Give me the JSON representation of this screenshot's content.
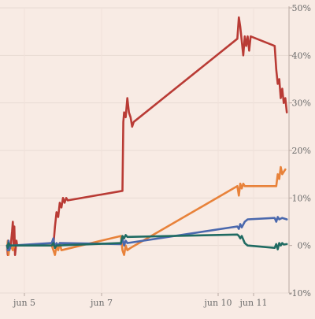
{
  "chart_data": {
    "type": "line",
    "title": "",
    "xlabel": "",
    "ylabel": "",
    "x_ticks": [
      "jun 5",
      "jun 7",
      "jun 10",
      "jun 11"
    ],
    "y_ticks": [
      "50%",
      "40%",
      "30%",
      "20%",
      "10%",
      "0%",
      "-10%"
    ],
    "ylim": [
      -10,
      50
    ],
    "y_unit": "%",
    "grid": true,
    "legend": "none",
    "series": [
      {
        "color": "#b93b35",
        "points": [
          [
            "jun 4 00:00",
            0
          ],
          [
            "jun 4 01:00",
            -2
          ],
          [
            "jun 4 02:00",
            1
          ],
          [
            "jun 4 03:00",
            -1
          ],
          [
            "jun 4 05:00",
            0
          ],
          [
            "jun 4 07:00",
            3
          ],
          [
            "jun 4 08:00",
            5
          ],
          [
            "jun 4 09:00",
            0
          ],
          [
            "jun 4 10:00",
            4
          ],
          [
            "jun 4 11:00",
            -2
          ],
          [
            "jun 4 13:00",
            1
          ],
          [
            "jun 4 14:00",
            0
          ],
          [
            "jun 5 18:00",
            0
          ],
          [
            "jun 5 19:00",
            4
          ],
          [
            "jun 5 20:00",
            7
          ],
          [
            "jun 5 21:00",
            6
          ],
          [
            "jun 5 22:00",
            9
          ],
          [
            "jun 5 23:00",
            8
          ],
          [
            "jun 6 00:00",
            10
          ],
          [
            "jun 6 01:00",
            9
          ],
          [
            "jun 6 02:00",
            10
          ],
          [
            "jun 6 03:00",
            9.5
          ],
          [
            "jun 7 13:00",
            11.5
          ],
          [
            "jun 7 13:30",
            26
          ],
          [
            "jun 7 14:00",
            28
          ],
          [
            "jun 7 15:00",
            27
          ],
          [
            "jun 7 16:00",
            31
          ],
          [
            "jun 7 17:00",
            28
          ],
          [
            "jun 7 18:00",
            27
          ],
          [
            "jun 7 19:00",
            25
          ],
          [
            "jun 7 20:00",
            26
          ],
          [
            "jun 10 13:00",
            43.5
          ],
          [
            "jun 10 14:00",
            48
          ],
          [
            "jun 10 15:00",
            46
          ],
          [
            "jun 10 16:00",
            43
          ],
          [
            "jun 10 17:00",
            40
          ],
          [
            "jun 10 18:00",
            44
          ],
          [
            "jun 10 19:00",
            42
          ],
          [
            "jun 10 20:00",
            44
          ],
          [
            "jun 10 21:00",
            41
          ],
          [
            "jun 10 22:00",
            44
          ],
          [
            "jun 11 14:00",
            42
          ],
          [
            "jun 11 15:00",
            37
          ],
          [
            "jun 11 16:00",
            34
          ],
          [
            "jun 11 17:00",
            35
          ],
          [
            "jun 11 18:00",
            31
          ],
          [
            "jun 11 19:00",
            33
          ],
          [
            "jun 11 20:00",
            30
          ],
          [
            "jun 11 21:00",
            31
          ],
          [
            "jun 11 22:00",
            28
          ]
        ]
      },
      {
        "color": "#e8823a",
        "points": [
          [
            "jun 4 00:00",
            -1
          ],
          [
            "jun 4 01:00",
            1
          ],
          [
            "jun 4 02:00",
            -2
          ],
          [
            "jun 4 03:00",
            -0.5
          ],
          [
            "jun 4 05:00",
            0
          ],
          [
            "jun 4 08:00",
            -1
          ],
          [
            "jun 4 10:00",
            0
          ],
          [
            "jun 5 17:00",
            0
          ],
          [
            "jun 5 18:00",
            -1
          ],
          [
            "jun 5 19:00",
            -2
          ],
          [
            "jun 5 20:00",
            0
          ],
          [
            "jun 5 21:00",
            -1
          ],
          [
            "jun 5 22:00",
            0.5
          ],
          [
            "jun 5 23:00",
            -1
          ],
          [
            "jun 7 12:00",
            2
          ],
          [
            "jun 7 13:00",
            -1
          ],
          [
            "jun 7 14:00",
            -2
          ],
          [
            "jun 7 15:00",
            0
          ],
          [
            "jun 7 16:00",
            -1
          ],
          [
            "jun 7 18:00",
            -0.5
          ],
          [
            "jun 10 13:00",
            12.5
          ],
          [
            "jun 10 14:00",
            10.5
          ],
          [
            "jun 10 15:00",
            13
          ],
          [
            "jun 10 16:00",
            12
          ],
          [
            "jun 10 17:00",
            13
          ],
          [
            "jun 10 18:00",
            12.5
          ],
          [
            "jun 11 15:00",
            12.5
          ],
          [
            "jun 11 16:00",
            15
          ],
          [
            "jun 11 17:00",
            14
          ],
          [
            "jun 11 18:00",
            16.5
          ],
          [
            "jun 11 19:00",
            15
          ],
          [
            "jun 11 21:00",
            16
          ]
        ]
      },
      {
        "color": "#4a68ad",
        "points": [
          [
            "jun 4 00:00",
            0
          ],
          [
            "jun 4 01:00",
            -1
          ],
          [
            "jun 4 02:00",
            1
          ],
          [
            "jun 4 03:00",
            -1
          ],
          [
            "jun 4 05:00",
            0
          ],
          [
            "jun 4 08:00",
            0
          ],
          [
            "jun 5 17:00",
            0.5
          ],
          [
            "jun 5 18:00",
            1.5
          ],
          [
            "jun 5 19:00",
            -0.5
          ],
          [
            "jun 5 20:00",
            0.5
          ],
          [
            "jun 5 21:00",
            0
          ],
          [
            "jun 5 22:00",
            0.5
          ],
          [
            "jun 7 12:00",
            0.3
          ],
          [
            "jun 7 13:00",
            1.5
          ],
          [
            "jun 7 14:00",
            0
          ],
          [
            "jun 7 15:00",
            1
          ],
          [
            "jun 7 16:00",
            0.5
          ],
          [
            "jun 10 13:00",
            4
          ],
          [
            "jun 10 14:00",
            3.5
          ],
          [
            "jun 10 15:00",
            4.5
          ],
          [
            "jun 10 16:00",
            3.8
          ],
          [
            "jun 10 18:00",
            5
          ],
          [
            "jun 10 20:00",
            5.5
          ],
          [
            "jun 11 14:00",
            5.8
          ],
          [
            "jun 11 15:00",
            5
          ],
          [
            "jun 11 16:00",
            6
          ],
          [
            "jun 11 17:00",
            5.5
          ],
          [
            "jun 11 19:00",
            5.8
          ],
          [
            "jun 11 22:00",
            5.5
          ]
        ]
      },
      {
        "color": "#1f6b62",
        "points": [
          [
            "jun 4 00:00",
            0
          ],
          [
            "jun 4 01:00",
            -0.5
          ],
          [
            "jun 4 02:00",
            0.5
          ],
          [
            "jun 4 04:00",
            0
          ],
          [
            "jun 5 17:00",
            0
          ],
          [
            "jun 5 18:00",
            0.5
          ],
          [
            "jun 5 19:00",
            -0.5
          ],
          [
            "jun 5 20:00",
            0
          ],
          [
            "jun 7 12:00",
            0.5
          ],
          [
            "jun 7 13:00",
            2
          ],
          [
            "jun 7 14:00",
            1.5
          ],
          [
            "jun 7 15:00",
            2.2
          ],
          [
            "jun 7 16:00",
            1.8
          ],
          [
            "jun 10 13:00",
            2.3
          ],
          [
            "jun 10 14:00",
            2
          ],
          [
            "jun 10 15:00",
            1.5
          ],
          [
            "jun 10 16:00",
            2
          ],
          [
            "jun 10 18:00",
            0.5
          ],
          [
            "jun 10 20:00",
            0
          ],
          [
            "jun 11 14:00",
            -0.5
          ],
          [
            "jun 11 15:00",
            0.3
          ],
          [
            "jun 11 16:00",
            -0.8
          ],
          [
            "jun 11 17:00",
            0.5
          ],
          [
            "jun 11 18:00",
            0
          ],
          [
            "jun 11 19:00",
            0.5
          ],
          [
            "jun 11 20:00",
            0.2
          ],
          [
            "jun 11 22:00",
            0.3
          ]
        ]
      }
    ]
  }
}
